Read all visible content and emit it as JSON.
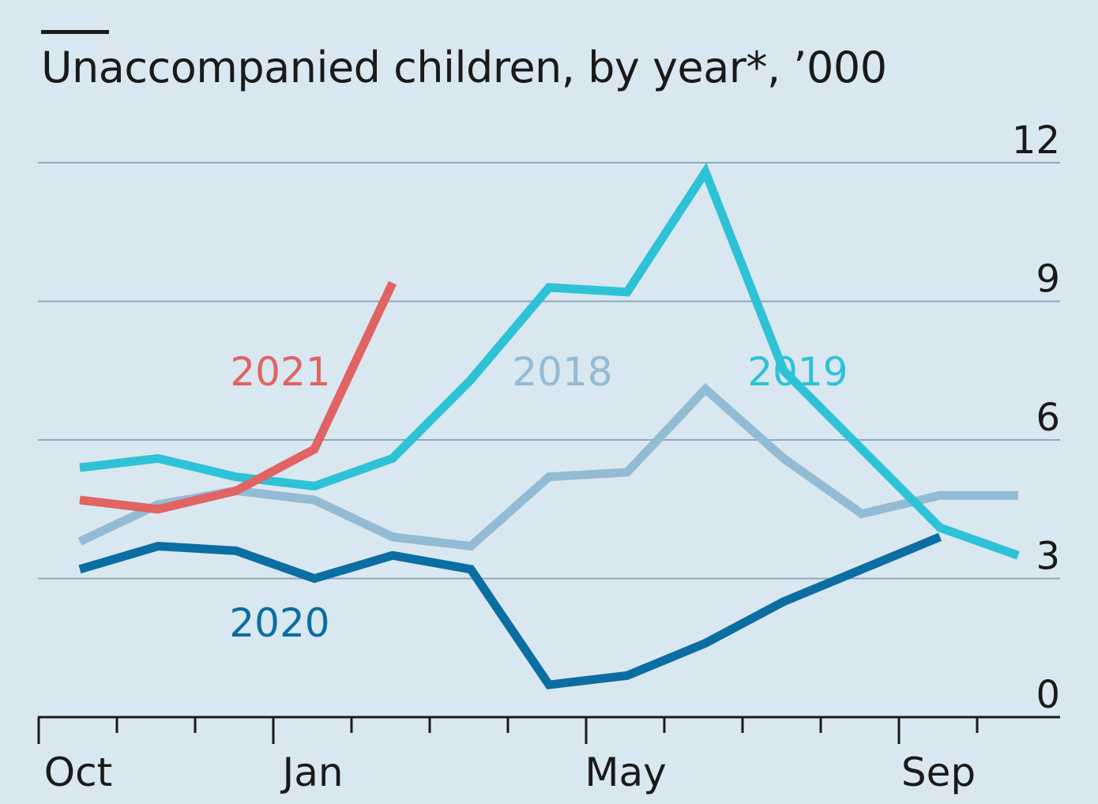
{
  "chart_data": {
    "type": "line",
    "title": "Unaccompanied children, by year*, ’000",
    "ylim": [
      0,
      12
    ],
    "yticks": [
      "0",
      "3",
      "6",
      "9",
      "12"
    ],
    "x_ticks_count": 13,
    "x_tick_labels": [
      {
        "tick": 0,
        "label": "Oct"
      },
      {
        "tick": 3,
        "label": "Jan"
      },
      {
        "tick": 7,
        "label": "May"
      },
      {
        "tick": 11,
        "label": "Sep"
      }
    ],
    "grid": true,
    "series": [
      {
        "name": "2018",
        "color": "#93bcd4",
        "values": [
          3.8,
          4.6,
          4.9,
          4.7,
          3.9,
          3.7,
          5.2,
          5.3,
          7.1,
          5.6,
          4.4,
          4.8,
          4.8
        ]
      },
      {
        "name": "2019",
        "color": "#2ec2d6",
        "values": [
          5.4,
          5.6,
          5.2,
          5.0,
          5.6,
          7.3,
          9.3,
          9.2,
          11.8,
          7.5,
          5.8,
          4.1,
          3.5
        ]
      },
      {
        "name": "2020",
        "color": "#0b6ea2",
        "values": [
          3.2,
          3.7,
          3.6,
          3.0,
          3.5,
          3.2,
          0.7,
          0.9,
          1.6,
          2.5,
          3.2,
          3.9
        ]
      },
      {
        "name": "2021",
        "color": "#e06463",
        "values": [
          4.7,
          4.5,
          4.9,
          5.8,
          9.4
        ]
      }
    ],
    "annotations": [
      {
        "text": "2021",
        "color": "#e06463"
      },
      {
        "text": "2018",
        "color": "#93bcd4"
      },
      {
        "text": "2019",
        "color": "#2ec2d6"
      },
      {
        "text": "2020",
        "color": "#0b6ea2"
      }
    ]
  }
}
